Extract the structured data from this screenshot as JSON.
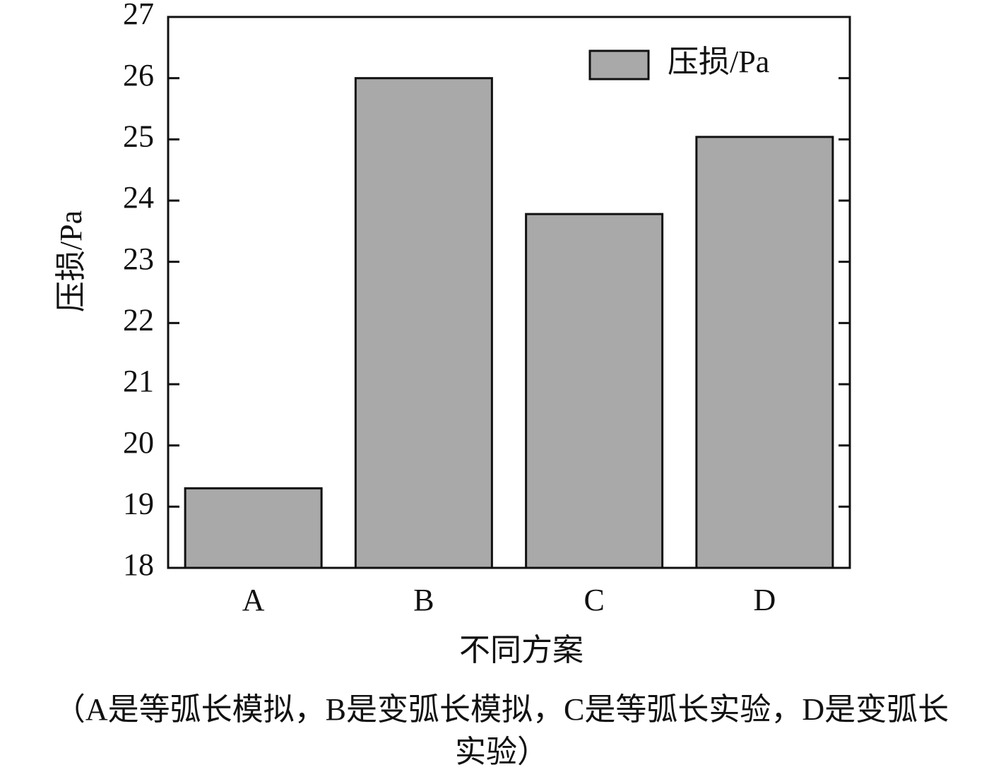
{
  "chart_data": {
    "type": "bar",
    "categories": [
      "A",
      "B",
      "C",
      "D"
    ],
    "series": [
      {
        "name": "压损/Pa",
        "color": "#a9a9a9",
        "values": [
          19.3,
          26.0,
          23.78,
          25.04
        ]
      }
    ],
    "ylabel": "压损/Pa",
    "xlabel": "不同方案",
    "caption": "（A是等弧长模拟，B是变弧长模拟，C是等弧长实验，D是变弧长实验）",
    "ylim": [
      18,
      27
    ],
    "yticks": [
      18,
      19,
      20,
      21,
      22,
      23,
      24,
      25,
      26,
      27
    ],
    "grid": false,
    "legend": "upper right"
  }
}
